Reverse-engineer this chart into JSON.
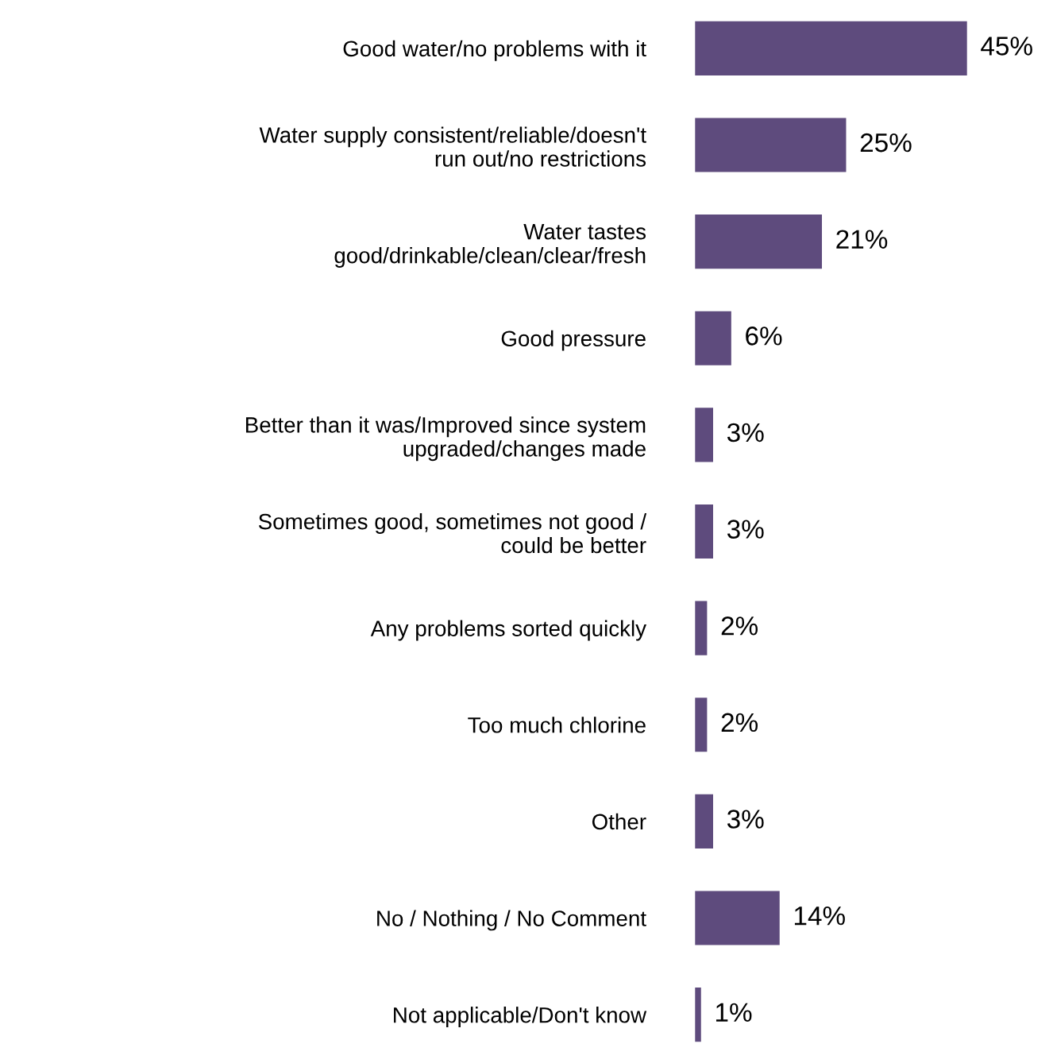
{
  "chart_data": {
    "type": "bar",
    "orientation": "horizontal",
    "color": "#5e4b7d",
    "value_labels": [
      "45%",
      "25%",
      "21%",
      "6%",
      "3%",
      "3%",
      "2%",
      "2%",
      "3%",
      "14%",
      "1%"
    ],
    "categories": [
      "Good water/no problems with it",
      "Water supply consistent/reliable/doesn't\nrun out/no restrictions",
      "Water tastes\ngood/drinkable/clean/clear/fresh",
      "Good pressure",
      "Better than it was/Improved since system\nupgraded/changes made",
      "Sometimes good, sometimes not good /\ncould be better",
      "Any problems sorted quickly",
      "Too much chlorine",
      "Other",
      "No / Nothing / No Comment",
      "Not applicable/Don't know"
    ],
    "values": [
      45,
      25,
      21,
      6,
      3,
      3,
      2,
      2,
      3,
      14,
      1
    ]
  }
}
